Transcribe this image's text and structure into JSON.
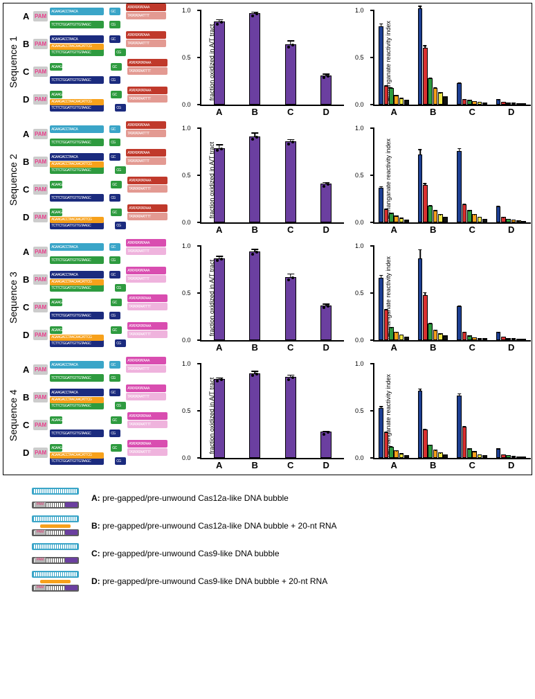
{
  "rows": [
    {
      "label": "Sequence 1",
      "diagVariants": [
        "cas12a_top",
        "cas12a_bot",
        "cas9_top",
        "cas9_bot"
      ],
      "bars": {
        "ylabel": "fraction oxidized in A/T tract",
        "ylim": [
          0,
          1
        ],
        "ticks": [
          0.0,
          0.5,
          1.0
        ],
        "cats": [
          "A",
          "B",
          "C",
          "D"
        ],
        "vals": [
          0.88,
          0.97,
          0.64,
          0.31
        ],
        "errs": [
          0.03,
          0.02,
          0.07,
          0.06
        ],
        "color": "#6b3fa0"
      },
      "mini": {
        "ylabel": "permanganate reactivity index",
        "ylim": [
          0,
          1
        ],
        "ticks": [
          0.0,
          0.5,
          1.0
        ],
        "groups": [
          "A",
          "B",
          "C",
          "D"
        ],
        "series": [
          [
            0.83,
            0.2,
            0.18,
            0.1,
            0.07,
            0.05
          ],
          [
            1.02,
            0.6,
            0.28,
            0.18,
            0.13,
            0.09
          ],
          [
            0.23,
            0.06,
            0.05,
            0.04,
            0.03,
            0.02
          ],
          [
            0.06,
            0.03,
            0.02,
            0.02,
            0.01,
            0.01
          ]
        ],
        "errs": [
          [
            0.04,
            0.03,
            0.03,
            0.02,
            0.02,
            0.01
          ],
          [
            0.03,
            0.05,
            0.03,
            0.02,
            0.02,
            0.01
          ],
          [
            0.03,
            0.02,
            0.02,
            0.01,
            0.01,
            0.01
          ],
          [
            0.02,
            0.01,
            0.01,
            0.01,
            0.01,
            0.01
          ]
        ],
        "colors": [
          "#1d3f93",
          "#d93030",
          "#2e9b3f",
          "#f7a11b",
          "#f0e847",
          "#111111"
        ]
      }
    },
    {
      "label": "Sequence 2",
      "diagVariants": [
        "cas12a_top",
        "cas12a_bot",
        "cas9_top",
        "cas9_bot"
      ],
      "bars": {
        "ylabel": "fraction oxidized in A/T tract",
        "ylim": [
          0,
          1
        ],
        "ticks": [
          0.0,
          0.5,
          1.0
        ],
        "cats": [
          "A",
          "B",
          "C",
          "D"
        ],
        "vals": [
          0.79,
          0.91,
          0.86,
          0.41
        ],
        "errs": [
          0.05,
          0.05,
          0.03,
          0.05
        ],
        "color": "#6b3fa0"
      },
      "mini": {
        "ylabel": "permanganate reactivity index",
        "ylim": [
          0,
          1
        ],
        "ticks": [
          0.0,
          0.5,
          1.0
        ],
        "groups": [
          "A",
          "B",
          "C",
          "D"
        ],
        "series": [
          [
            0.37,
            0.14,
            0.1,
            0.07,
            0.05,
            0.03
          ],
          [
            0.72,
            0.4,
            0.18,
            0.13,
            0.09,
            0.06
          ],
          [
            0.76,
            0.19,
            0.13,
            0.09,
            0.06,
            0.04
          ],
          [
            0.17,
            0.06,
            0.04,
            0.03,
            0.02,
            0.01
          ]
        ],
        "errs": [
          [
            0.04,
            0.03,
            0.02,
            0.02,
            0.01,
            0.01
          ],
          [
            0.08,
            0.05,
            0.03,
            0.02,
            0.02,
            0.01
          ],
          [
            0.04,
            0.03,
            0.02,
            0.02,
            0.01,
            0.01
          ],
          [
            0.02,
            0.02,
            0.01,
            0.01,
            0.01,
            0.01
          ]
        ],
        "colors": [
          "#1d3f93",
          "#d93030",
          "#2e9b3f",
          "#f7a11b",
          "#f0e847",
          "#111111"
        ]
      }
    },
    {
      "label": "Sequence 3",
      "diagVariants": [
        "cas12a_top",
        "cas12a_bot",
        "cas9_top",
        "cas9_bot"
      ],
      "bars": {
        "ylabel": "fraction oxidized in A/T tract",
        "ylim": [
          0,
          1
        ],
        "ticks": [
          0.0,
          0.5,
          1.0
        ],
        "cats": [
          "A",
          "B",
          "C",
          "D"
        ],
        "vals": [
          0.87,
          0.94,
          0.67,
          0.37
        ],
        "errs": [
          0.03,
          0.03,
          0.06,
          0.05
        ],
        "color": "#6b3fa0"
      },
      "mini": {
        "ylabel": "permanganate reactivity index",
        "ylim": [
          0,
          1
        ],
        "ticks": [
          0.0,
          0.5,
          1.0
        ],
        "groups": [
          "A",
          "B",
          "C",
          "D"
        ],
        "series": [
          [
            0.66,
            0.32,
            0.14,
            0.09,
            0.06,
            0.04
          ],
          [
            0.87,
            0.48,
            0.18,
            0.11,
            0.07,
            0.05
          ],
          [
            0.36,
            0.09,
            0.05,
            0.03,
            0.02,
            0.02
          ],
          [
            0.09,
            0.04,
            0.02,
            0.02,
            0.01,
            0.01
          ]
        ],
        "errs": [
          [
            0.05,
            0.04,
            0.02,
            0.02,
            0.01,
            0.01
          ],
          [
            0.11,
            0.06,
            0.03,
            0.02,
            0.02,
            0.01
          ],
          [
            0.03,
            0.02,
            0.01,
            0.01,
            0.01,
            0.01
          ],
          [
            0.02,
            0.01,
            0.01,
            0.01,
            0.01,
            0.01
          ]
        ],
        "colors": [
          "#1d3f93",
          "#d93030",
          "#2e9b3f",
          "#f7a11b",
          "#f0e847",
          "#111111"
        ]
      }
    },
    {
      "label": "Sequence 4",
      "diagVariants": [
        "cas12a_top",
        "cas12a_bot",
        "cas9_top",
        "cas9_bot"
      ],
      "bars": {
        "ylabel": "fraction oxidized in A/T tract",
        "ylim": [
          0,
          1
        ],
        "ticks": [
          0.0,
          0.5,
          1.0
        ],
        "cats": [
          "A",
          "B",
          "C",
          "D"
        ],
        "vals": [
          0.84,
          0.9,
          0.86,
          0.28
        ],
        "errs": [
          0.02,
          0.03,
          0.03,
          0.03
        ],
        "color": "#6b3fa0"
      },
      "mini": {
        "ylabel": "permanganate reactivity index",
        "ylim": [
          0,
          1
        ],
        "ticks": [
          0.0,
          0.5,
          1.0
        ],
        "groups": [
          "A",
          "B",
          "C",
          "D"
        ],
        "series": [
          [
            0.53,
            0.27,
            0.12,
            0.08,
            0.05,
            0.03
          ],
          [
            0.71,
            0.3,
            0.14,
            0.09,
            0.06,
            0.04
          ],
          [
            0.66,
            0.33,
            0.1,
            0.07,
            0.04,
            0.03
          ],
          [
            0.1,
            0.04,
            0.03,
            0.02,
            0.01,
            0.01
          ]
        ],
        "errs": [
          [
            0.04,
            0.03,
            0.02,
            0.02,
            0.01,
            0.01
          ],
          [
            0.04,
            0.03,
            0.02,
            0.02,
            0.02,
            0.01
          ],
          [
            0.04,
            0.03,
            0.02,
            0.01,
            0.01,
            0.01
          ],
          [
            0.02,
            0.01,
            0.01,
            0.01,
            0.01,
            0.01
          ]
        ],
        "colors": [
          "#1d3f93",
          "#d93030",
          "#2e9b3f",
          "#f7a11b",
          "#f0e847",
          "#111111"
        ]
      }
    }
  ],
  "diagColors": {
    "cyan": "#3aa5c8",
    "cyanL": "#a9e0ed",
    "navy": "#1b2b7e",
    "navyL": "#8d98c5",
    "green": "#2e9b3f",
    "greenL": "#9dd6a3",
    "red": "#c0392b",
    "redL": "#e39a92",
    "magenta": "#d94db0",
    "magentaL": "#efb3dd",
    "orange": "#f7a11b",
    "pam": "#e83e8c"
  },
  "legend": [
    {
      "key": "A",
      "text": "pre-gapped/pre-unwound Cas12a-like DNA bubble",
      "hasRNA": false,
      "type": "cas12a"
    },
    {
      "key": "B",
      "text": "pre-gapped/pre-unwound Cas12a-like DNA bubble + 20-nt RNA",
      "hasRNA": true,
      "type": "cas12a"
    },
    {
      "key": "C",
      "text": "pre-gapped/pre-unwound Cas9-like DNA bubble",
      "hasRNA": false,
      "type": "cas9"
    },
    {
      "key": "D",
      "text": "pre-gapped/pre-unwound Cas9-like DNA bubble + 20-nt RNA",
      "hasRNA": true,
      "type": "cas9"
    }
  ]
}
